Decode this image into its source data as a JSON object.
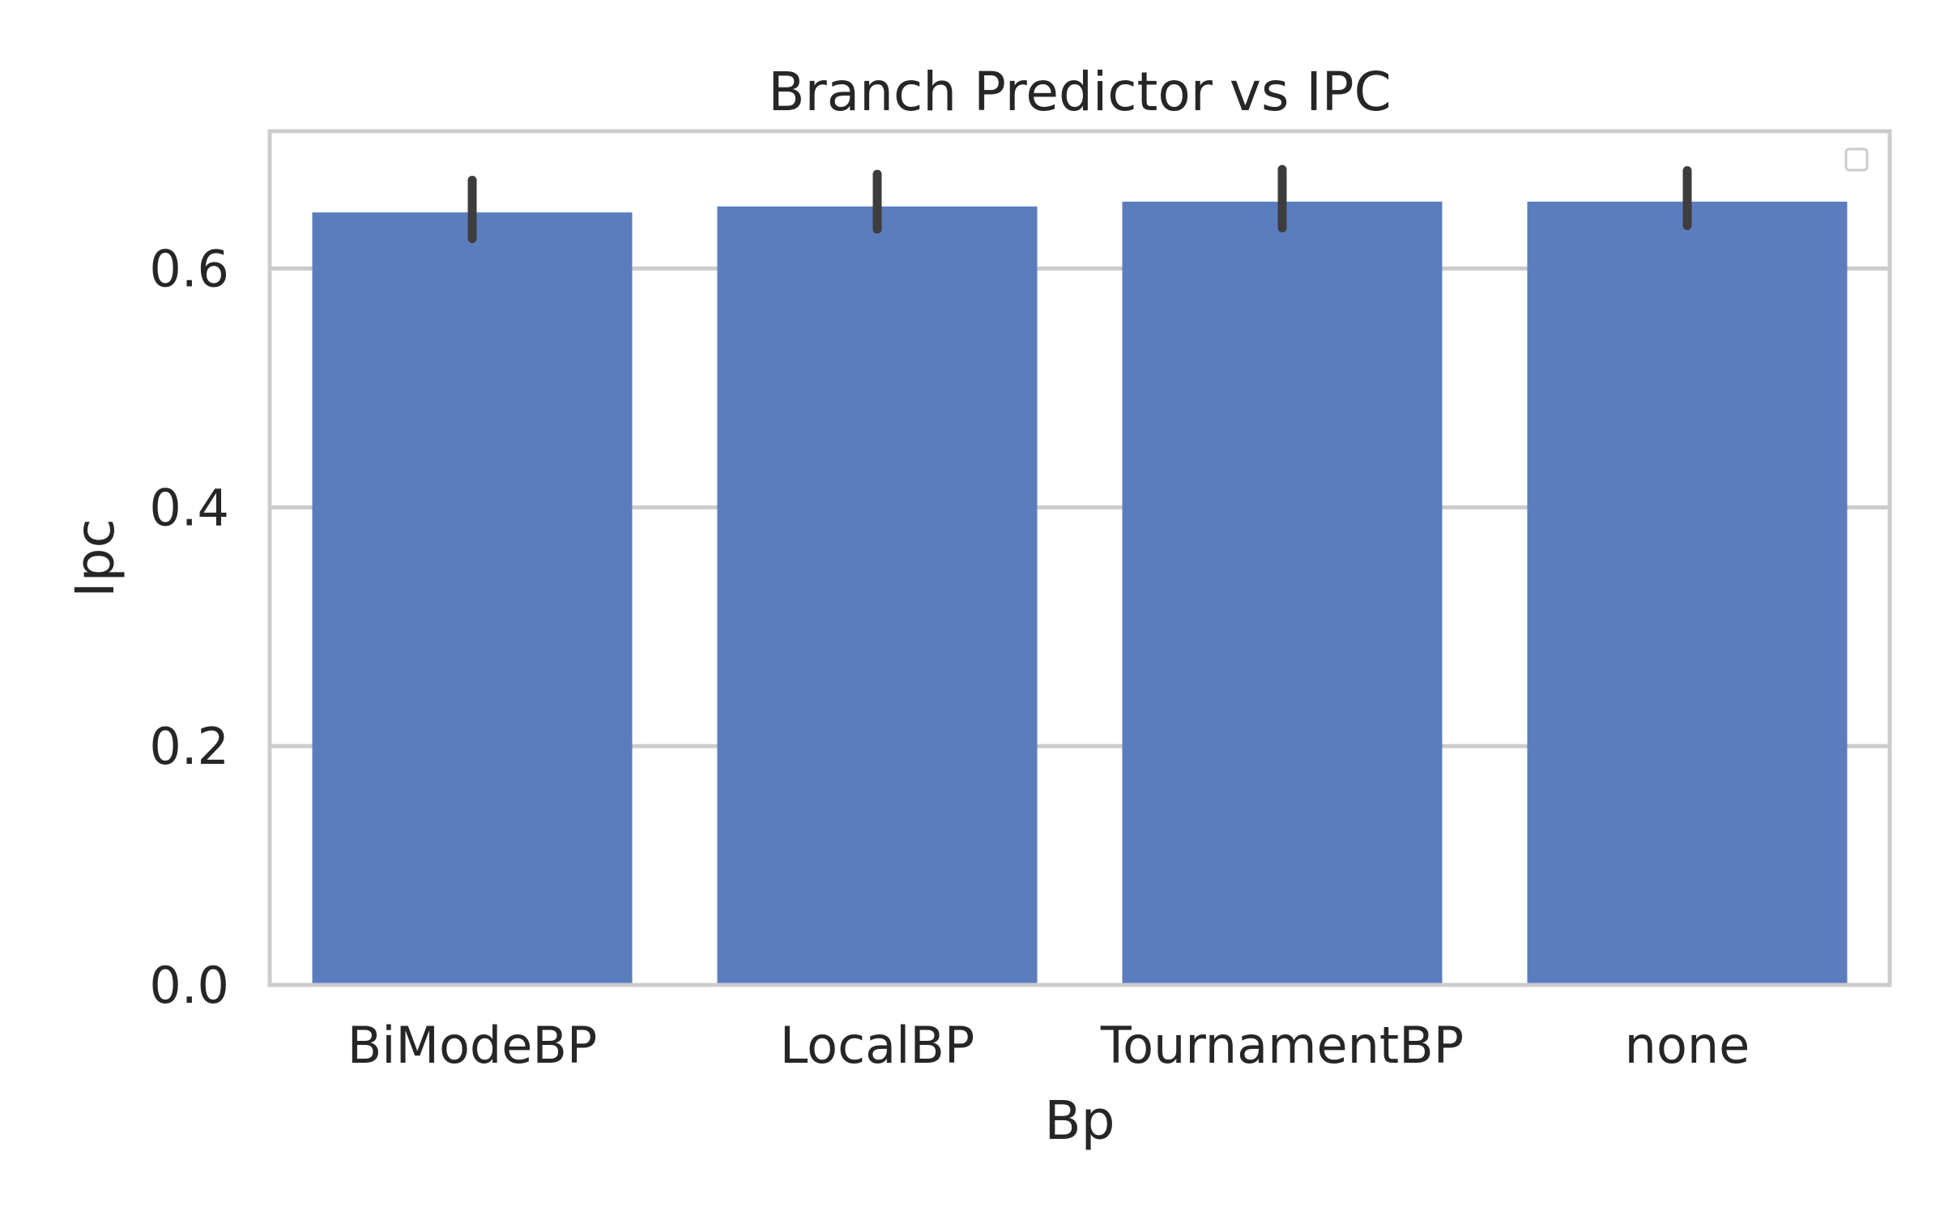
{
  "chart_data": {
    "type": "bar",
    "title": "Branch Predictor vs IPC",
    "xlabel": "Bp",
    "ylabel": "Ipc",
    "categories": [
      "BiModeBP",
      "LocalBP",
      "TournamentBP",
      "none"
    ],
    "values": [
      0.647,
      0.652,
      0.656,
      0.656
    ],
    "error_low": [
      0.625,
      0.633,
      0.634,
      0.636
    ],
    "error_high": [
      0.674,
      0.679,
      0.683,
      0.682
    ],
    "ylim": [
      0,
      0.715
    ],
    "yticks": [
      0.0,
      0.2,
      0.4,
      0.6
    ],
    "ytick_labels": [
      "0.0",
      "0.2",
      "0.4",
      "0.6"
    ],
    "grid": "horizontal",
    "legend": "top-right (empty)",
    "colors": {
      "bar": "#5b7dbe",
      "error_bar": "#3d3d3d",
      "grid": "#cccccc",
      "axes_border": "#cccccc",
      "text": "#262626"
    }
  }
}
